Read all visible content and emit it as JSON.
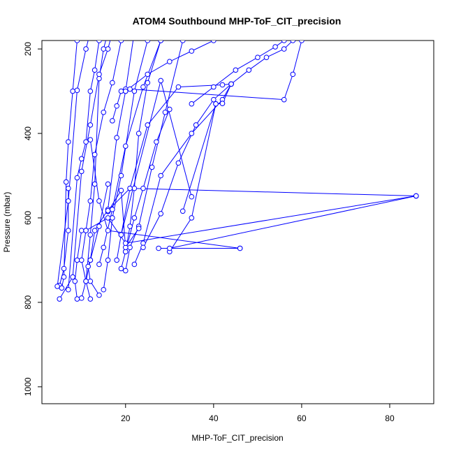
{
  "chart_data": {
    "type": "line",
    "title": "ATOM4 Southbound MHP-ToF_CIT_precision",
    "xlabel": "MHP-ToF_CIT_precision",
    "ylabel": "Pressure (mbar)",
    "xlim": [
      1,
      90
    ],
    "ylim": [
      1040,
      180
    ],
    "y_reversed": true,
    "x_ticks": [
      20,
      40,
      60,
      80
    ],
    "y_ticks": [
      200,
      400,
      600,
      800,
      1000
    ],
    "x_tick_labels": [
      "20",
      "40",
      "60",
      "80"
    ],
    "y_tick_labels": [
      "200",
      "400",
      "600",
      "800",
      "1000"
    ],
    "grid": false,
    "legend": "none",
    "series_color": "#0000ff",
    "marker": "open-circle",
    "series": [
      {
        "x": [
          7,
          7,
          6,
          5
        ],
        "y": [
          530,
          630,
          720,
          760
        ]
      },
      {
        "x": [
          4.5,
          7,
          9,
          11,
          12
        ],
        "y": [
          762,
          560,
          298,
          200,
          160
        ]
      },
      {
        "x": [
          5.5,
          6,
          6.5,
          7,
          8,
          9
        ],
        "y": [
          766,
          740,
          515,
          420,
          300,
          180
        ]
      },
      {
        "x": [
          7,
          9,
          10,
          11,
          12,
          13,
          14
        ],
        "y": [
          770,
          505,
          460,
          420,
          300,
          250,
          180
        ]
      },
      {
        "x": [
          10,
          11,
          12,
          13,
          14,
          15,
          16
        ],
        "y": [
          790,
          750,
          640,
          520,
          270,
          200,
          160
        ]
      },
      {
        "x": [
          5,
          8,
          10,
          12,
          14,
          16,
          17
        ],
        "y": [
          792,
          740,
          490,
          380,
          260,
          200,
          160
        ]
      },
      {
        "x": [
          9,
          8.5,
          9,
          10
        ],
        "y": [
          792,
          750,
          700,
          630
        ]
      },
      {
        "x": [
          12,
          11,
          10,
          11,
          12,
          13,
          15,
          17,
          19
        ],
        "y": [
          792,
          750,
          700,
          630,
          560,
          450,
          350,
          280,
          180
        ]
      },
      {
        "x": [
          14,
          12,
          11.5,
          12,
          14,
          16
        ],
        "y": [
          783,
          750,
          715,
          700,
          620,
          520
        ]
      },
      {
        "x": [
          11,
          12,
          13,
          16,
          18,
          20,
          22
        ],
        "y": [
          750,
          700,
          630,
          580,
          410,
          300,
          160
        ]
      },
      {
        "x": [
          15,
          16,
          17,
          19,
          22,
          25
        ],
        "y": [
          770,
          700,
          600,
          500,
          300,
          180
        ]
      },
      {
        "x": [
          19,
          20,
          21,
          22,
          23,
          25,
          28
        ],
        "y": [
          720,
          680,
          620,
          530,
          400,
          280,
          180
        ]
      },
      {
        "x": [
          20,
          21,
          23,
          26,
          29,
          33
        ],
        "y": [
          725,
          670,
          620,
          480,
          350,
          180
        ]
      },
      {
        "x": [
          14,
          15,
          17,
          20,
          24,
          28
        ],
        "y": [
          710,
          670,
          580,
          430,
          290,
          180
        ]
      },
      {
        "x": [
          18,
          19,
          21,
          25,
          32,
          42,
          44
        ],
        "y": [
          700,
          640,
          530,
          380,
          290,
          285,
          283
        ]
      },
      {
        "x": [
          22,
          24,
          28,
          35,
          42,
          44
        ],
        "y": [
          710,
          660,
          500,
          400,
          320,
          283
        ]
      },
      {
        "x": [
          30,
          35,
          40.5,
          42,
          44
        ],
        "y": [
          680,
          600,
          330,
          329,
          283
        ]
      },
      {
        "x": [
          33,
          40.5,
          42
        ],
        "y": [
          584,
          330,
          329
        ]
      },
      {
        "x": [
          19,
          28,
          35
        ],
        "y": [
          640,
          275,
          550
        ]
      },
      {
        "x": [
          20,
          22,
          24,
          27,
          30
        ],
        "y": [
          680,
          600,
          530,
          420,
          343
        ]
      },
      {
        "x": [
          17,
          18,
          19,
          20
        ],
        "y": [
          370,
          335,
          300,
          295
        ]
      },
      {
        "x": [
          16,
          19,
          20,
          23
        ],
        "y": [
          585,
          535,
          670,
          625
        ]
      },
      {
        "x": [
          24,
          28,
          32,
          36,
          40,
          44
        ],
        "y": [
          670,
          590,
          470,
          380,
          320,
          283
        ]
      },
      {
        "x": [
          12,
          14,
          16,
          46
        ],
        "y": [
          415,
          560,
          630,
          672
        ]
      },
      {
        "x": [
          11,
          16,
          20,
          86
        ],
        "y": [
          630,
          600,
          660,
          548
        ]
      },
      {
        "x": [
          16,
          21,
          86
        ],
        "y": [
          583,
          530,
          548
        ]
      },
      {
        "x": [
          27.5,
          46
        ],
        "y": [
          672,
          672
        ]
      },
      {
        "x": [
          30,
          86
        ],
        "y": [
          672,
          548
        ]
      },
      {
        "x": [
          21,
          56,
          58,
          60
        ],
        "y": [
          295,
          320,
          260,
          180
        ]
      },
      {
        "x": [
          44,
          48,
          52,
          56,
          58
        ],
        "y": [
          283,
          250,
          220,
          200,
          180
        ]
      },
      {
        "x": [
          35,
          40,
          45,
          50,
          54,
          56
        ],
        "y": [
          330,
          290,
          250,
          220,
          195,
          180
        ]
      },
      {
        "x": [
          20,
          25,
          30,
          35,
          40
        ],
        "y": [
          300,
          260,
          230,
          205,
          180
        ]
      }
    ]
  }
}
